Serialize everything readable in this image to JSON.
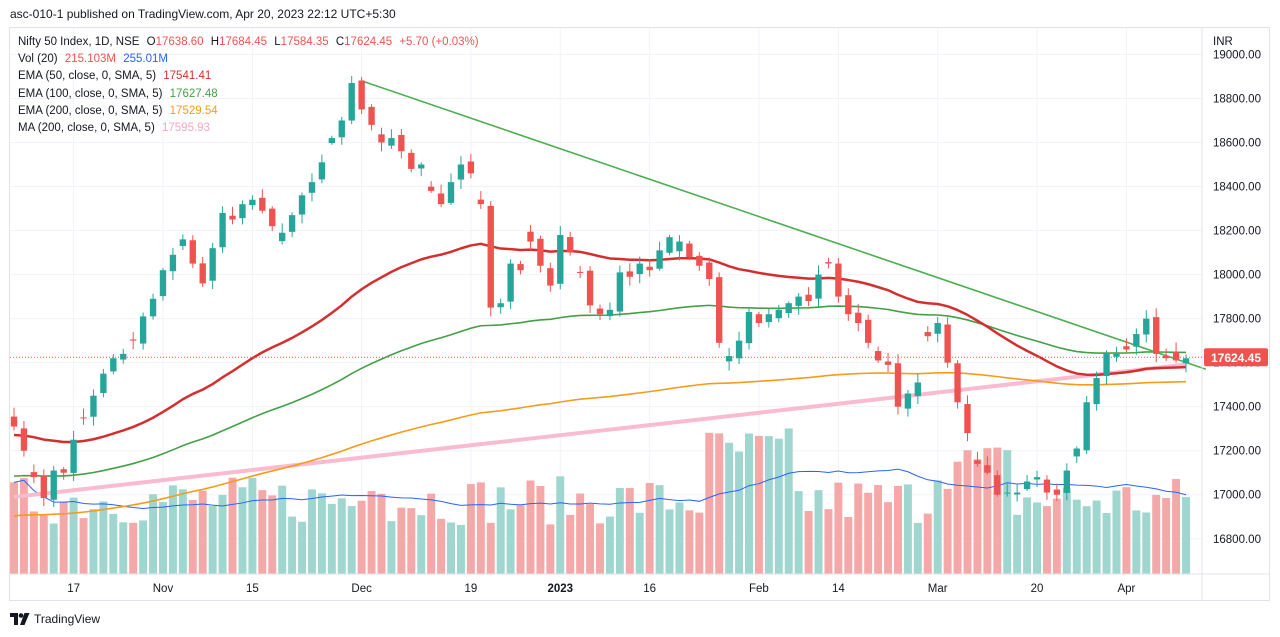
{
  "header": {
    "publish_text": "asc-010-1 published on TradingView.com, Apr 20, 2023 22:12 UTC+5:30"
  },
  "footer": {
    "brand": "TradingView",
    "icon": "tradingview-logo-icon"
  },
  "legend": {
    "symbol": "Nifty 50 Index, 1D, NSE",
    "open_key": "O",
    "open": "17638.60",
    "high_key": "H",
    "high": "17684.45",
    "low_key": "L",
    "low": "17584.35",
    "close_key": "C",
    "close": "17624.45",
    "change": "+5.70 (+0.03%)",
    "vol_label": "Vol (20)",
    "vol_value": "215.103M",
    "vol_ma": "255.01M",
    "ema50_label": "EMA (50, close, 0, SMA, 5)",
    "ema50_value": "17541.41",
    "ema100_label": "EMA (100, close, 0, SMA, 5)",
    "ema100_value": "17627.48",
    "ema200_label": "EMA (200, close, 0, SMA, 5)",
    "ema200_value": "17529.54",
    "ma200_label": "MA (200, close, 0, SMA, 5)",
    "ma200_value": "17595.93"
  },
  "chart_data": {
    "type": "candlestick",
    "currency": "INR",
    "y_ticks": [
      "19000.00",
      "18800.00",
      "18600.00",
      "18400.00",
      "18200.00",
      "18000.00",
      "17800.00",
      "17600.00",
      "17400.00",
      "17200.00",
      "17000.00",
      "16800.00"
    ],
    "ylim": [
      16640,
      19120
    ],
    "x_ticks": [
      {
        "label": "17",
        "index": 6
      },
      {
        "label": "Nov",
        "index": 15
      },
      {
        "label": "15",
        "index": 24
      },
      {
        "label": "Dec",
        "index": 35
      },
      {
        "label": "19",
        "index": 46
      },
      {
        "label": "2023",
        "index": 55,
        "bold": true
      },
      {
        "label": "16",
        "index": 64
      },
      {
        "label": "Feb",
        "index": 75
      },
      {
        "label": "14",
        "index": 83
      },
      {
        "label": "Mar",
        "index": 93
      },
      {
        "label": "20",
        "index": 103
      },
      {
        "label": "Apr",
        "index": 112
      }
    ],
    "last_price_label": "17624.45",
    "colors": {
      "up": "#26a69a",
      "down": "#ef5350",
      "ema50": "#d32f2f",
      "ema100": "#43a047",
      "ema200": "#f59c1a",
      "ma200": "#f8bbd0",
      "vol_ma": "#2962ff",
      "trendline": "#4caf50",
      "price_line": "#ef5350"
    },
    "candle_closes": [
      17310,
      17200,
      17080,
      16985,
      17110,
      17100,
      17250,
      17350,
      17450,
      17550,
      17620,
      17640,
      17700,
      17810,
      17890,
      18020,
      18090,
      18160,
      18050,
      17960,
      18120,
      18280,
      18250,
      18320,
      18340,
      18290,
      18220,
      18190,
      18270,
      18360,
      18420,
      18510,
      18620,
      18700,
      18870,
      18750,
      18680,
      18600,
      18620,
      18560,
      18480,
      18500,
      18380,
      18320,
      18420,
      18500,
      18460,
      18320,
      17850,
      17870,
      18050,
      18020,
      18150,
      18040,
      17950,
      18180,
      18100,
      18010,
      17860,
      17820,
      17840,
      18010,
      17990,
      18050,
      18020,
      18110,
      18170,
      18150,
      18080,
      18040,
      17980,
      17690,
      17630,
      17700,
      17830,
      17780,
      17820,
      17840,
      17870,
      17900,
      17880,
      18000,
      18050,
      17900,
      17820,
      17780,
      17690,
      17610,
      17590,
      17400,
      17460,
      17510,
      17720,
      17780,
      17600,
      17420,
      17280,
      17140,
      17100,
      17000,
      17010,
      17010,
      17060,
      17080,
      17010,
      17000,
      17110,
      17210,
      17420,
      17530,
      17640,
      17640,
      17660,
      17730,
      17800,
      17640,
      17620,
      17610,
      17620
    ],
    "volume_unit": "M",
    "annotations": [
      {
        "type": "trendline",
        "from_index": 35,
        "from_price": 18880,
        "to_index": 120,
        "to_price": 17570
      }
    ]
  }
}
